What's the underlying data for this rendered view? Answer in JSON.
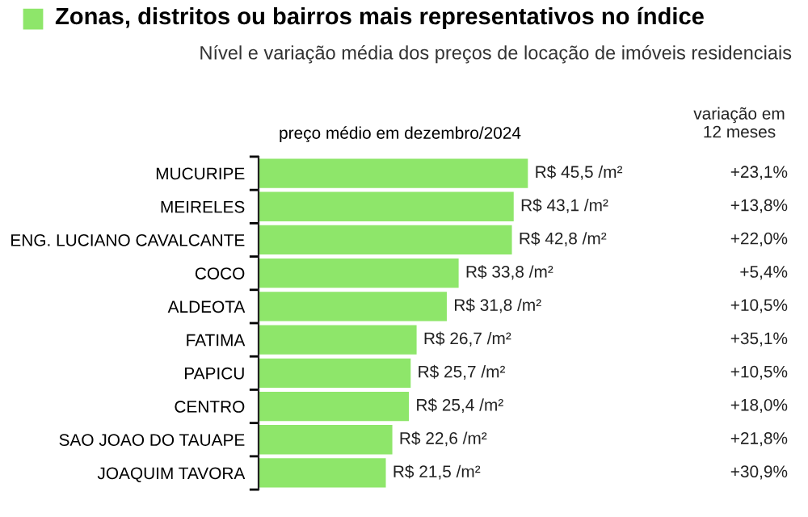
{
  "chart_data": {
    "type": "bar",
    "orientation": "horizontal",
    "title": "Zonas, distritos ou bairros mais representativos no índice",
    "subtitle": "Nível e variação média dos preços de locação de imóveis residenciais",
    "xlabel": "preço médio em dezembro/2024",
    "categories": [
      "MUCURIPE",
      "MEIRELES",
      "ENG. LUCIANO CAVALCANTE",
      "COCO",
      "ALDEOTA",
      "FATIMA",
      "PAPICU",
      "CENTRO",
      "SAO JOAO DO TAUAPE",
      "JOAQUIM TAVORA"
    ],
    "values": [
      45.5,
      43.1,
      42.8,
      33.8,
      31.8,
      26.7,
      25.7,
      25.4,
      22.6,
      21.5
    ],
    "value_labels": [
      "R$ 45,5 /m²",
      "R$ 43,1 /m²",
      "R$ 42,8 /m²",
      "R$ 33,8 /m²",
      "R$ 31,8 /m²",
      "R$ 26,7 /m²",
      "R$ 25,7 /m²",
      "R$ 25,4 /m²",
      "R$ 22,6 /m²",
      "R$ 21,5 /m²"
    ],
    "color": "#8ee66a",
    "tick_labels": "y",
    "grid": false,
    "legend": false,
    "annotations": [
      "variação em\n12 meses",
      "+23,1%",
      "+13,8%",
      "+22,0%",
      "+5,4%",
      "+10,5%",
      "+35,1%",
      "+10,5%",
      "+18,0%",
      "+21,8%",
      "+30,9%"
    ]
  }
}
